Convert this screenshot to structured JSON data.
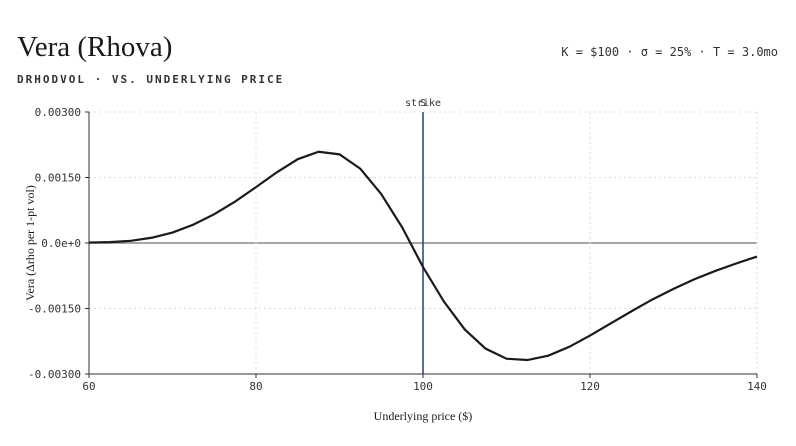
{
  "chart_data": {
    "type": "line",
    "title": "Vera (Rhova)",
    "subtitle": "DRHODVOL · VS. UNDERLYING PRICE",
    "parameters": "K = $100 · σ = 25% · T = 3.0mo",
    "xlabel": "Underlying price ($)",
    "ylabel": "Vera (Δrho per 1-pt vol)",
    "x": [
      60,
      62.5,
      65,
      67.5,
      70,
      72.5,
      75,
      77.5,
      80,
      82.5,
      85,
      87.5,
      90,
      92.5,
      95,
      97.5,
      100,
      102.5,
      105,
      107.5,
      110,
      112.5,
      115,
      117.5,
      120,
      122.5,
      125,
      127.5,
      130,
      132.5,
      135,
      137.5,
      140
    ],
    "series": [
      {
        "name": "Vera",
        "color": "#1a1a1a",
        "values": [
          1e-05,
          2e-05,
          5e-05,
          0.00012,
          0.00024,
          0.00042,
          0.00066,
          0.00095,
          0.00128,
          0.00162,
          0.00192,
          0.00209,
          0.00203,
          0.0017,
          0.00112,
          0.00036,
          -0.00055,
          -0.00134,
          -0.00198,
          -0.00242,
          -0.00265,
          -0.00268,
          -0.00258,
          -0.00238,
          -0.00212,
          -0.00184,
          -0.00156,
          -0.00129,
          -0.00105,
          -0.00083,
          -0.00064,
          -0.00047,
          -0.00031
        ]
      }
    ],
    "xlim": [
      60,
      140
    ],
    "xticks": [
      60,
      80,
      100,
      120,
      140
    ],
    "ylim": [
      -0.003,
      0.003
    ],
    "yticks": [
      {
        "value": 0.003,
        "label": "0.00300"
      },
      {
        "value": 0.0015,
        "label": "0.00150"
      },
      {
        "value": 0,
        "label": "0.0e+0"
      },
      {
        "value": -0.0015,
        "label": "-0.00150"
      },
      {
        "value": -0.003,
        "label": "-0.00300"
      }
    ],
    "grid": true,
    "markers": [
      {
        "x": 100,
        "label": "strike",
        "color": "#2b3f6e"
      },
      {
        "x": 100,
        "label": "S",
        "color": "#2b3f6e"
      }
    ]
  }
}
